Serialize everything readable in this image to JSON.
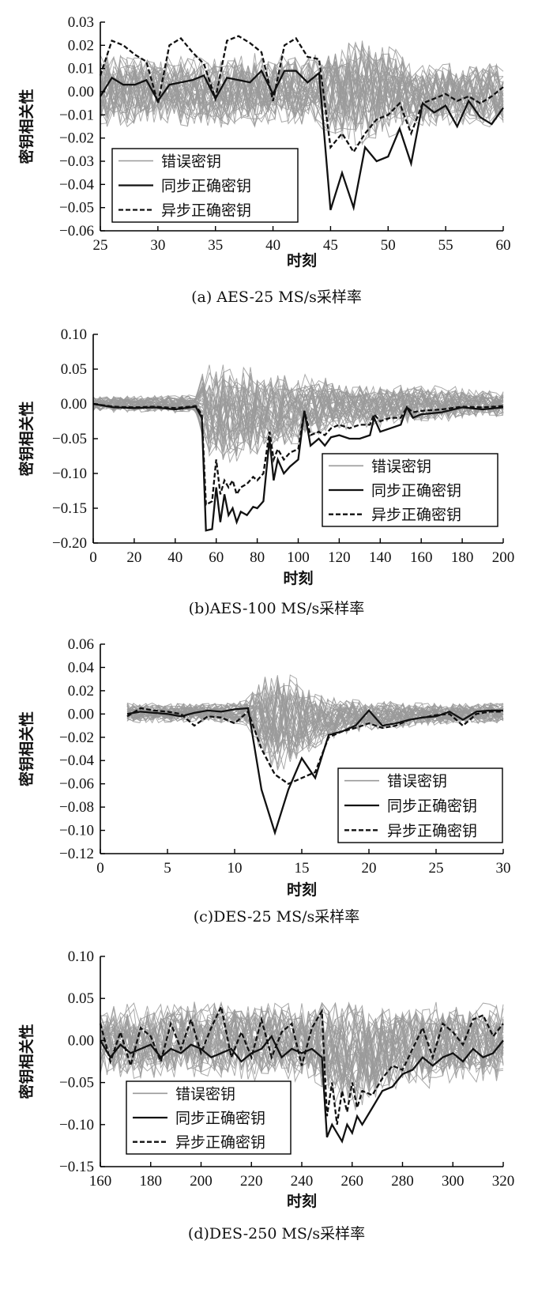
{
  "colors": {
    "wrong_key": "#9a9a9a",
    "sync_correct": "#111111",
    "async_correct": "#111111",
    "axis": "#000000"
  },
  "chart_data": [
    {
      "type": "line",
      "caption": "(a) AES-25 MS/s采样率",
      "xlabel": "时刻",
      "ylabel": "密钥相关性",
      "xlim": [
        25,
        60
      ],
      "ylim": [
        -0.06,
        0.03
      ],
      "xticks": [
        25,
        30,
        35,
        40,
        45,
        50,
        55,
        60
      ],
      "xtick_labels": [
        "25",
        "30",
        "35",
        "40",
        "45",
        "50",
        "55",
        "60"
      ],
      "yticks": [
        -0.06,
        -0.05,
        -0.04,
        -0.03,
        -0.02,
        -0.01,
        0,
        0.01,
        0.02,
        0.03
      ],
      "ytick_labels": [
        "−0.06",
        "−0.05",
        "−0.04",
        "−0.03",
        "−0.02",
        "−0.01",
        "0.00",
        "0.01",
        "0.02",
        "0.03"
      ],
      "legend_position": "lower-left",
      "legend": [
        "错误密钥",
        "同步正确密钥",
        "异步正确密钥"
      ],
      "wrong_key_band": {
        "x": [
          25,
          30,
          35,
          40,
          44,
          45,
          47,
          50,
          52,
          60
        ],
        "upper": [
          0.018,
          0.016,
          0.017,
          0.018,
          0.017,
          0.02,
          0.025,
          0.022,
          0.014,
          0.013
        ],
        "lower": [
          -0.016,
          -0.015,
          -0.016,
          -0.016,
          -0.015,
          -0.022,
          -0.024,
          -0.02,
          -0.017,
          -0.016
        ]
      },
      "series": [
        {
          "name": "同步正确密钥",
          "style": "solid",
          "x": [
            25,
            26,
            27,
            28,
            29,
            30,
            31,
            32,
            33,
            34,
            35,
            36,
            37,
            38,
            39,
            40,
            41,
            42,
            43,
            44,
            45,
            46,
            47,
            48,
            49,
            50,
            51,
            52,
            53,
            54,
            55,
            56,
            57,
            58,
            59,
            60
          ],
          "y": [
            -0.002,
            0.006,
            0.003,
            0.003,
            0.005,
            -0.004,
            0.003,
            0.004,
            0.005,
            0.007,
            -0.003,
            0.006,
            0.005,
            0.004,
            0.009,
            -0.001,
            0.009,
            0.009,
            0.004,
            0.008,
            -0.051,
            -0.035,
            -0.05,
            -0.024,
            -0.03,
            -0.028,
            -0.016,
            -0.031,
            -0.005,
            -0.009,
            -0.006,
            -0.015,
            -0.004,
            -0.011,
            -0.014,
            -0.007
          ]
        },
        {
          "name": "异步正确密钥",
          "style": "dashed",
          "x": [
            25,
            26,
            27,
            28,
            29,
            30,
            31,
            32,
            33,
            34,
            35,
            36,
            37,
            38,
            39,
            40,
            41,
            42,
            43,
            44,
            45,
            46,
            47,
            48,
            49,
            50,
            51,
            52,
            53,
            54,
            55,
            56,
            57,
            58,
            59,
            60
          ],
          "y": [
            0.007,
            0.022,
            0.02,
            0.016,
            0.013,
            -0.005,
            0.02,
            0.023,
            0.017,
            0.012,
            -0.003,
            0.022,
            0.024,
            0.021,
            0.017,
            -0.004,
            0.02,
            0.023,
            0.015,
            0.014,
            -0.024,
            -0.018,
            -0.026,
            -0.018,
            -0.012,
            -0.01,
            -0.005,
            -0.018,
            -0.005,
            -0.003,
            -0.001,
            -0.004,
            -0.002,
            -0.005,
            -0.002,
            0.002
          ]
        }
      ]
    },
    {
      "type": "line",
      "caption": "(b)AES-100 MS/s采样率",
      "xlabel": "时刻",
      "ylabel": "密钥相关性",
      "xlim": [
        0,
        200
      ],
      "ylim": [
        -0.2,
        0.1
      ],
      "xticks": [
        0,
        20,
        40,
        60,
        80,
        100,
        120,
        140,
        160,
        180,
        200
      ],
      "xtick_labels": [
        "0",
        "20",
        "40",
        "60",
        "80",
        "100",
        "120",
        "140",
        "160",
        "180",
        "200"
      ],
      "yticks": [
        -0.2,
        -0.15,
        -0.1,
        -0.05,
        0,
        0.05,
        0.1
      ],
      "ytick_labels": [
        "−0.20",
        "−0.15",
        "−0.10",
        "−0.05",
        "0.00",
        "0.05",
        "0.10"
      ],
      "legend_position": "lower-right",
      "legend": [
        "错误密钥",
        "同步正确密钥",
        "异步正确密钥"
      ],
      "wrong_key_band": {
        "x": [
          0,
          50,
          55,
          60,
          70,
          80,
          90,
          100,
          110,
          120,
          140,
          160,
          180,
          200
        ],
        "upper": [
          0.012,
          0.014,
          0.072,
          0.07,
          0.06,
          0.055,
          0.05,
          0.045,
          0.04,
          0.035,
          0.03,
          0.028,
          0.025,
          0.022
        ],
        "lower": [
          -0.012,
          -0.014,
          -0.09,
          -0.1,
          -0.09,
          -0.08,
          -0.07,
          -0.06,
          -0.05,
          -0.04,
          -0.035,
          -0.03,
          -0.025,
          -0.02
        ]
      },
      "series": [
        {
          "name": "同步正确密钥",
          "style": "solid",
          "x": [
            0,
            10,
            20,
            30,
            40,
            50,
            53,
            55,
            58,
            60,
            62,
            64,
            66,
            68,
            70,
            72,
            75,
            78,
            80,
            83,
            86,
            88,
            90,
            93,
            96,
            100,
            103,
            106,
            110,
            113,
            116,
            120,
            125,
            130,
            135,
            137,
            140,
            145,
            150,
            153,
            156,
            160,
            170,
            180,
            190,
            200
          ],
          "y": [
            0.0,
            -0.005,
            -0.006,
            -0.005,
            -0.008,
            -0.004,
            -0.02,
            -0.182,
            -0.18,
            -0.12,
            -0.17,
            -0.13,
            -0.16,
            -0.15,
            -0.17,
            -0.155,
            -0.16,
            -0.148,
            -0.15,
            -0.14,
            -0.05,
            -0.11,
            -0.08,
            -0.1,
            -0.09,
            -0.08,
            -0.01,
            -0.06,
            -0.05,
            -0.06,
            -0.048,
            -0.045,
            -0.05,
            -0.05,
            -0.045,
            -0.02,
            -0.04,
            -0.035,
            -0.03,
            -0.005,
            -0.02,
            -0.015,
            -0.012,
            -0.005,
            -0.008,
            -0.005
          ]
        },
        {
          "name": "异步正确密钥",
          "style": "dashed",
          "x": [
            0,
            10,
            20,
            30,
            40,
            50,
            53,
            55,
            58,
            60,
            62,
            64,
            66,
            68,
            70,
            72,
            75,
            78,
            80,
            83,
            86,
            88,
            90,
            93,
            96,
            100,
            103,
            106,
            110,
            113,
            116,
            120,
            125,
            130,
            135,
            137,
            140,
            145,
            150,
            153,
            156,
            160,
            170,
            180,
            190,
            200
          ],
          "y": [
            0.0,
            -0.004,
            -0.005,
            -0.004,
            -0.006,
            -0.003,
            -0.015,
            -0.145,
            -0.14,
            -0.08,
            -0.13,
            -0.11,
            -0.12,
            -0.11,
            -0.13,
            -0.12,
            -0.115,
            -0.105,
            -0.11,
            -0.1,
            -0.04,
            -0.08,
            -0.065,
            -0.08,
            -0.07,
            -0.065,
            -0.01,
            -0.045,
            -0.04,
            -0.045,
            -0.035,
            -0.03,
            -0.035,
            -0.03,
            -0.03,
            -0.015,
            -0.025,
            -0.02,
            -0.02,
            -0.005,
            -0.012,
            -0.01,
            -0.008,
            -0.004,
            -0.005,
            -0.003
          ]
        }
      ]
    },
    {
      "type": "line",
      "caption": "(c)DES-25 MS/s采样率",
      "xlabel": "时刻",
      "ylabel": "密钥相关性",
      "xlim": [
        0,
        30
      ],
      "ylim": [
        -0.12,
        0.06
      ],
      "xticks": [
        0,
        5,
        10,
        15,
        20,
        25,
        30
      ],
      "xtick_labels": [
        "0",
        "5",
        "10",
        "15",
        "20",
        "25",
        "30"
      ],
      "yticks": [
        -0.12,
        -0.1,
        -0.08,
        -0.06,
        -0.04,
        -0.02,
        0,
        0.02,
        0.04,
        0.06
      ],
      "ytick_labels": [
        "−0.12",
        "−0.10",
        "−0.08",
        "−0.06",
        "−0.04",
        "−0.02",
        "0.00",
        "0.02",
        "0.04",
        "0.06"
      ],
      "legend_position": "lower-right",
      "legend": [
        "错误密钥",
        "同步正确密钥",
        "异步正确密钥"
      ],
      "wrong_key_band": {
        "x": [
          2,
          5,
          10,
          11,
          12,
          13,
          14,
          15,
          16,
          18,
          20,
          25,
          30
        ],
        "upper": [
          0.01,
          0.01,
          0.01,
          0.015,
          0.035,
          0.042,
          0.038,
          0.03,
          0.02,
          0.015,
          0.012,
          0.01,
          0.01
        ],
        "lower": [
          -0.008,
          -0.008,
          -0.008,
          -0.012,
          -0.04,
          -0.05,
          -0.05,
          -0.04,
          -0.03,
          -0.02,
          -0.015,
          -0.01,
          -0.008
        ]
      },
      "series": [
        {
          "name": "同步正确密钥",
          "style": "solid",
          "x": [
            2,
            3,
            4,
            5,
            6,
            7,
            8,
            9,
            10,
            11,
            12,
            13,
            14,
            15,
            16,
            17,
            18,
            19,
            20,
            21,
            22,
            23,
            24,
            25,
            26,
            27,
            28,
            29,
            30
          ],
          "y": [
            0.0,
            0.002,
            0.001,
            0.0,
            -0.002,
            0.001,
            0.003,
            0.002,
            0.004,
            0.005,
            -0.065,
            -0.102,
            -0.065,
            -0.038,
            -0.055,
            -0.018,
            -0.015,
            -0.01,
            0.003,
            -0.01,
            -0.008,
            -0.005,
            -0.003,
            -0.002,
            0.002,
            -0.005,
            0.002,
            0.003,
            0.003
          ]
        },
        {
          "name": "异步正确密钥",
          "style": "dashed",
          "x": [
            2,
            3,
            4,
            5,
            6,
            7,
            8,
            9,
            10,
            11,
            12,
            13,
            14,
            15,
            16,
            17,
            18,
            19,
            20,
            21,
            22,
            23,
            24,
            25,
            26,
            27,
            28,
            29,
            30
          ],
          "y": [
            -0.002,
            0.005,
            0.003,
            0.002,
            0.0,
            -0.01,
            -0.002,
            -0.003,
            -0.008,
            0.002,
            -0.03,
            -0.052,
            -0.06,
            -0.055,
            -0.05,
            -0.02,
            -0.015,
            -0.012,
            -0.008,
            -0.012,
            -0.01,
            -0.005,
            -0.003,
            -0.001,
            0.0,
            -0.01,
            0.0,
            0.002,
            0.002
          ]
        }
      ]
    },
    {
      "type": "line",
      "caption": "(d)DES-250 MS/s采样率",
      "xlabel": "时刻",
      "ylabel": "密钥相关性",
      "xlim": [
        160,
        320
      ],
      "ylim": [
        -0.15,
        0.1
      ],
      "xticks": [
        160,
        180,
        200,
        220,
        240,
        260,
        280,
        300,
        320
      ],
      "xtick_labels": [
        "160",
        "180",
        "200",
        "220",
        "240",
        "260",
        "280",
        "300",
        "320"
      ],
      "yticks": [
        -0.15,
        -0.1,
        -0.05,
        0,
        0.05,
        0.1
      ],
      "ytick_labels": [
        "−0.15",
        "−0.10",
        "−0.05",
        "0.00",
        "0.05",
        "0.10"
      ],
      "legend_position": "lower-left",
      "legend": [
        "错误密钥",
        "同步正确密钥",
        "异步正确密钥"
      ],
      "wrong_key_band": {
        "x": [
          160,
          180,
          200,
          220,
          240,
          250,
          260,
          270,
          280,
          300,
          320
        ],
        "upper": [
          0.045,
          0.05,
          0.048,
          0.05,
          0.05,
          0.055,
          0.05,
          0.045,
          0.045,
          0.048,
          0.045
        ],
        "lower": [
          -0.045,
          -0.048,
          -0.045,
          -0.05,
          -0.05,
          -0.07,
          -0.09,
          -0.07,
          -0.06,
          -0.055,
          -0.05
        ]
      },
      "series": [
        {
          "name": "同步正确密钥",
          "style": "solid",
          "x": [
            160,
            164,
            168,
            172,
            176,
            180,
            184,
            188,
            192,
            196,
            200,
            204,
            208,
            212,
            216,
            220,
            224,
            228,
            232,
            236,
            240,
            244,
            248,
            250,
            252,
            254,
            256,
            258,
            260,
            262,
            264,
            268,
            272,
            276,
            280,
            284,
            288,
            292,
            296,
            300,
            304,
            308,
            312,
            316,
            320
          ],
          "y": [
            0.0,
            -0.02,
            -0.005,
            -0.015,
            -0.01,
            -0.005,
            -0.02,
            -0.01,
            -0.015,
            -0.005,
            -0.01,
            -0.02,
            -0.015,
            -0.01,
            -0.025,
            -0.015,
            -0.01,
            0.005,
            -0.02,
            -0.01,
            -0.015,
            -0.01,
            -0.02,
            -0.115,
            -0.1,
            -0.11,
            -0.12,
            -0.1,
            -0.11,
            -0.09,
            -0.1,
            -0.08,
            -0.06,
            -0.055,
            -0.04,
            -0.035,
            -0.02,
            -0.03,
            -0.02,
            -0.015,
            -0.025,
            -0.01,
            -0.02,
            -0.015,
            0.0
          ]
        },
        {
          "name": "异步正确密钥",
          "style": "dashed",
          "x": [
            160,
            164,
            168,
            172,
            176,
            180,
            184,
            188,
            192,
            196,
            200,
            204,
            208,
            212,
            216,
            220,
            224,
            228,
            232,
            236,
            240,
            244,
            248,
            250,
            252,
            254,
            256,
            258,
            260,
            262,
            264,
            268,
            272,
            276,
            280,
            284,
            288,
            292,
            296,
            300,
            304,
            308,
            312,
            316,
            320
          ],
          "y": [
            0.02,
            -0.025,
            0.01,
            -0.03,
            0.015,
            0.005,
            -0.025,
            0.02,
            -0.01,
            0.025,
            -0.015,
            0.015,
            0.04,
            -0.02,
            0.01,
            -0.02,
            0.025,
            -0.02,
            0.01,
            0.02,
            -0.03,
            0.015,
            0.035,
            -0.09,
            -0.05,
            -0.1,
            -0.06,
            -0.085,
            -0.05,
            -0.08,
            -0.06,
            -0.065,
            -0.045,
            -0.03,
            -0.035,
            -0.01,
            0.015,
            -0.02,
            0.02,
            0.01,
            -0.005,
            0.025,
            0.03,
            0.005,
            0.02
          ]
        }
      ]
    }
  ]
}
